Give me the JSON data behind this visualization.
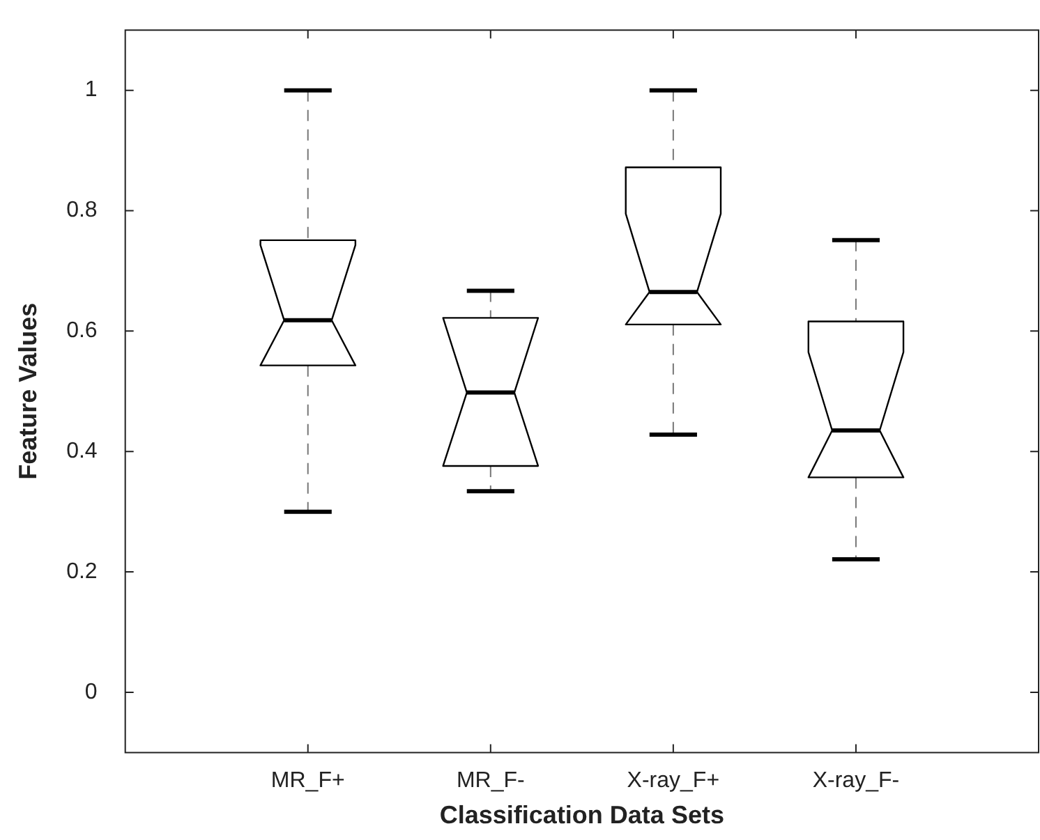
{
  "chart_data": {
    "type": "box",
    "xlabel": "Classification Data Sets",
    "ylabel": "Feature Values",
    "categories": [
      "MR_F+",
      "MR_F-",
      "X-ray_F+",
      "X-ray_F-"
    ],
    "boxes": [
      {
        "low": 0.3,
        "q1": 0.543,
        "median": 0.618,
        "q3": 0.751,
        "high": 1.0
      },
      {
        "low": 0.334,
        "q1": 0.376,
        "median": 0.498,
        "q3": 0.622,
        "high": 0.667
      },
      {
        "low": 0.428,
        "q1": 0.611,
        "median": 0.665,
        "q3": 0.872,
        "high": 1.0
      },
      {
        "low": 0.221,
        "q1": 0.357,
        "median": 0.435,
        "q3": 0.616,
        "high": 0.751
      }
    ],
    "ylim": [
      -0.1,
      1.1
    ],
    "yticks": [
      0,
      0.2,
      0.4,
      0.6,
      0.8,
      1
    ]
  }
}
